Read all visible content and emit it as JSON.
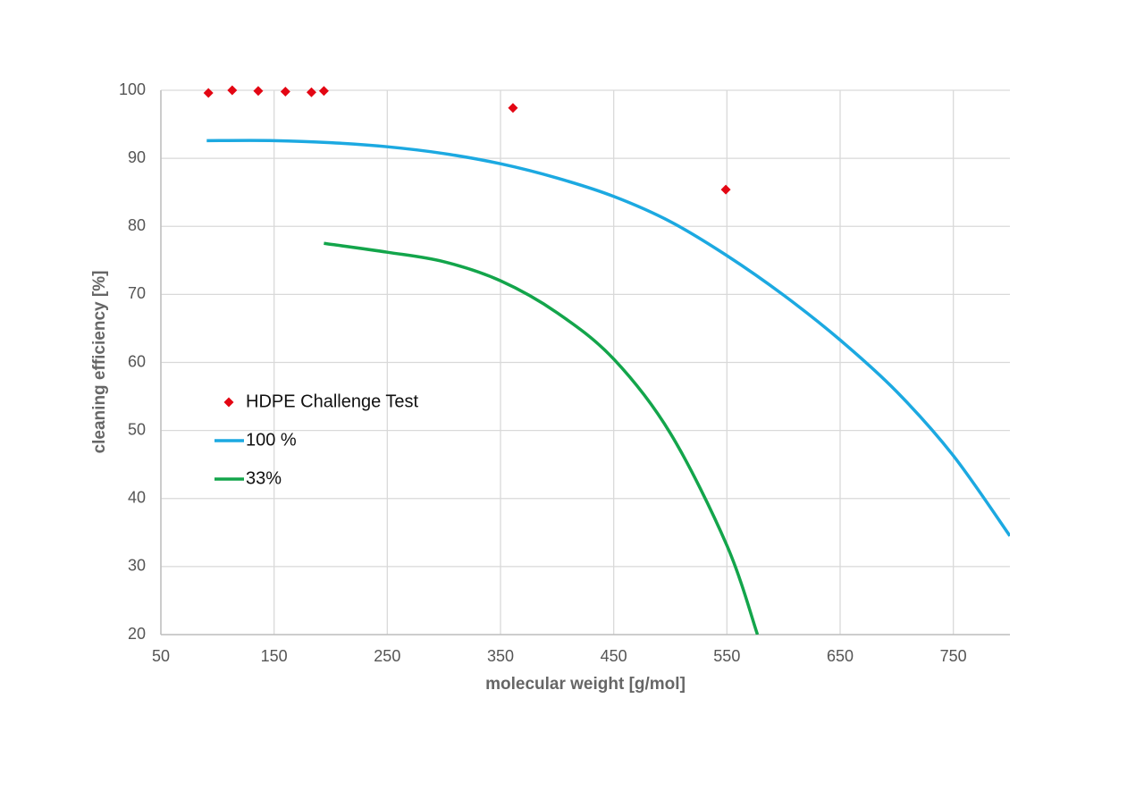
{
  "chart_data": {
    "type": "scatter",
    "x_label": "molecular weight [g/mol]",
    "y_label": "cleaning efficiency [%]",
    "xlim": [
      50,
      800
    ],
    "ylim": [
      20,
      100
    ],
    "xticks": [
      50,
      150,
      250,
      350,
      450,
      550,
      650,
      750
    ],
    "yticks": [
      20,
      30,
      40,
      50,
      60,
      70,
      80,
      90,
      100
    ],
    "grid": true,
    "legend": "left",
    "series": [
      {
        "name": "HDPE Challenge Test",
        "type": "scatter",
        "color": "#e30613",
        "x": [
          92,
          113,
          136,
          160,
          183,
          194,
          361,
          549
        ],
        "values": [
          99.6,
          100,
          99.9,
          99.8,
          99.7,
          99.9,
          97.4,
          85.4
        ]
      },
      {
        "name": "100 %",
        "type": "line",
        "color": "#1ca9e1",
        "x": [
          90.5,
          150,
          200,
          250,
          300,
          350,
          400,
          450,
          500,
          550,
          600,
          650,
          700,
          750,
          800
        ],
        "values": [
          92.6,
          92.6,
          92.3,
          91.7,
          90.7,
          89.2,
          87.1,
          84.4,
          80.7,
          75.7,
          69.9,
          63.3,
          55.7,
          46.3,
          34.5
        ]
      },
      {
        "name": "33%",
        "type": "line",
        "color": "#13a54b",
        "x": [
          194,
          250,
          300,
          350,
          400,
          450,
          500,
          550,
          577
        ],
        "values": [
          77.5,
          76.2,
          74.8,
          72.0,
          67.3,
          60.5,
          49.6,
          33.1,
          20
        ]
      }
    ]
  }
}
